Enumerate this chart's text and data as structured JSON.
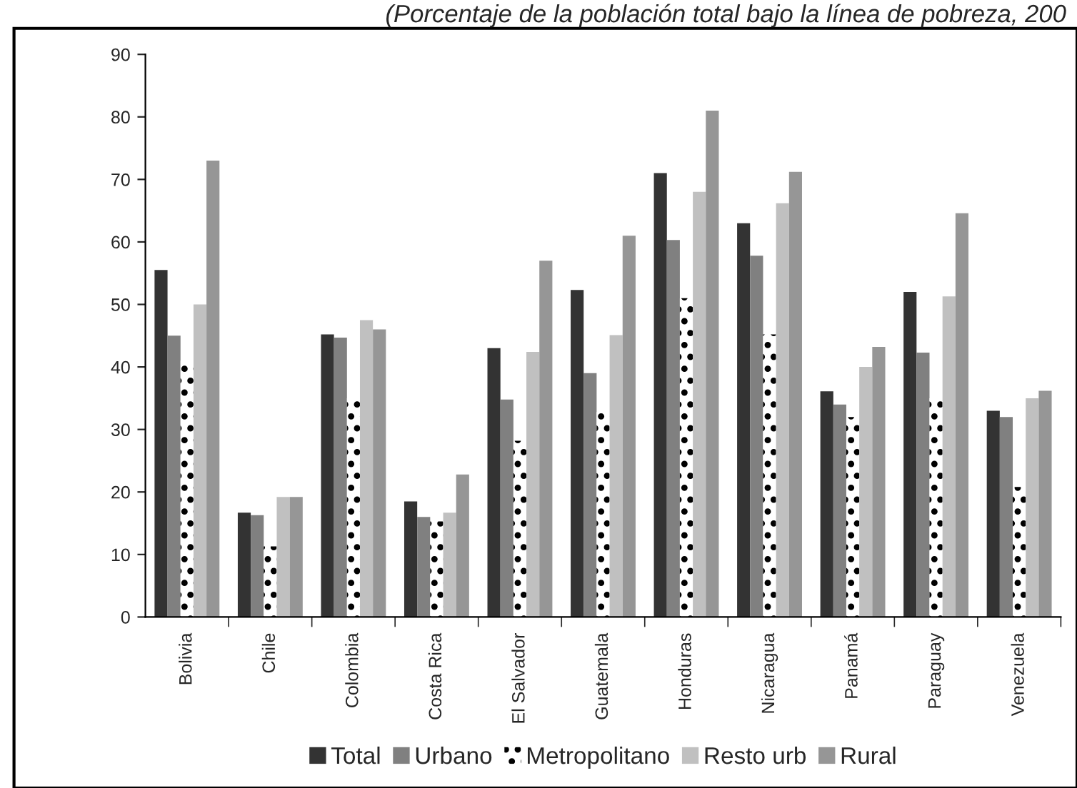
{
  "chart_data": {
    "type": "bar",
    "title": "(Porcentaje de la población total bajo la línea de pobreza, 200",
    "categories": [
      "Bolivia",
      "Chile",
      "Colombia",
      "Costa Rica",
      "El Salvador",
      "Guatemala",
      "Honduras",
      "Nicaragua",
      "Panamá",
      "Paraguay",
      "Venezuela"
    ],
    "series": [
      {
        "name": "Total",
        "color": "#333333",
        "values": [
          55.5,
          16.7,
          45.2,
          18.5,
          43,
          52.3,
          71,
          63,
          36.1,
          52,
          33
        ]
      },
      {
        "name": "Urbano",
        "color": "#808080",
        "values": [
          45,
          16.3,
          44.7,
          16,
          34.8,
          39,
          60.3,
          57.8,
          34,
          42.3,
          32
        ]
      },
      {
        "name": "Metropolitano",
        "color": "#000000",
        "values": [
          41,
          11.3,
          35,
          15.3,
          28.2,
          32.8,
          51,
          45.2,
          32,
          35,
          20.8
        ]
      },
      {
        "name": "Resto urb",
        "color": "#c0c0c0",
        "values": [
          50,
          19.2,
          47.5,
          16.7,
          42.4,
          45.1,
          68,
          66.2,
          40,
          51.3,
          35
        ]
      },
      {
        "name": "Rural",
        "color": "#969696",
        "values": [
          73,
          19.2,
          46,
          22.8,
          57,
          61,
          81,
          71.2,
          43.2,
          64.6,
          36.2
        ]
      }
    ],
    "ylim": [
      0,
      90
    ],
    "yticks": [
      0,
      10,
      20,
      30,
      40,
      50,
      60,
      70,
      80,
      90
    ],
    "grid": false,
    "legend": "bottom"
  }
}
